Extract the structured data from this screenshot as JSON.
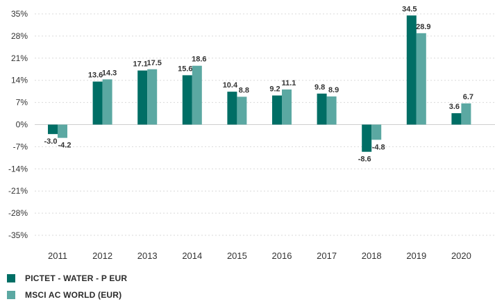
{
  "chart_data": {
    "type": "bar",
    "categories": [
      "2011",
      "2012",
      "2013",
      "2014",
      "2015",
      "2016",
      "2017",
      "2018",
      "2019",
      "2020"
    ],
    "series": [
      {
        "name": "PICTET - WATER - P EUR",
        "values": [
          -3.0,
          13.6,
          17.1,
          15.6,
          10.4,
          9.2,
          9.8,
          -8.6,
          34.5,
          3.6
        ],
        "color": "#006e65"
      },
      {
        "name": "MSCI AC WORLD (EUR)",
        "values": [
          -4.2,
          14.3,
          17.5,
          18.6,
          8.8,
          11.1,
          8.9,
          -4.8,
          28.9,
          6.7
        ],
        "color": "#5ba8a2"
      }
    ],
    "value_labels": [
      [
        "-3.0",
        "13.6",
        "17.1",
        "15.6",
        "10.4",
        "9.2",
        "9.8",
        "-8.6",
        "34.5",
        "3.6"
      ],
      [
        "-4.2",
        "14.3",
        "17.5",
        "18.6",
        "8.8",
        "11.1",
        "8.9",
        "-4.8",
        "28.9",
        "6.7"
      ]
    ],
    "y_ticks": [
      35,
      28,
      21,
      14,
      7,
      0,
      -7,
      -14,
      -21,
      -28,
      -35
    ],
    "y_tick_labels": [
      "35%",
      "28%",
      "21%",
      "14%",
      "7%",
      "0%",
      "-7%",
      "-14%",
      "-21%",
      "-28%",
      "-35%"
    ],
    "ylim": [
      -35,
      35
    ],
    "grid": true,
    "legend_position": "bottom-left"
  }
}
